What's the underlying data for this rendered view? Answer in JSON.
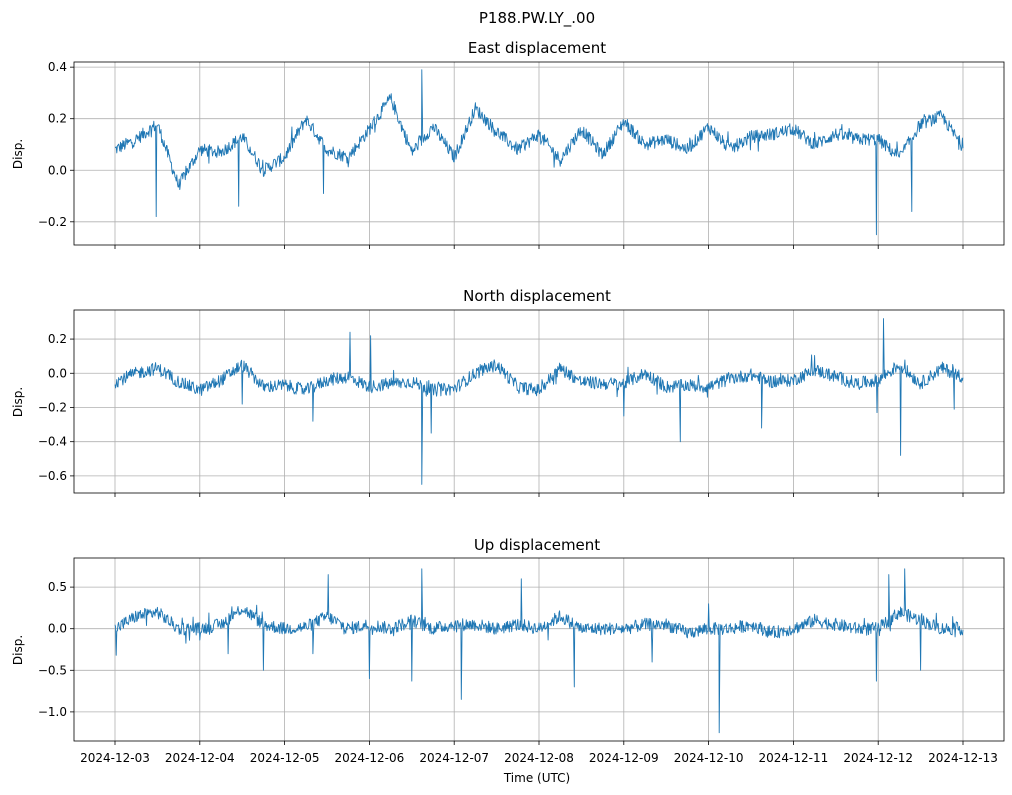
{
  "figure": {
    "suptitle": "P188.PW.LY_.00",
    "xlabel": "Time (UTC)",
    "x_tick_labels": [
      "2024-12-03",
      "2024-12-04",
      "2024-12-05",
      "2024-12-06",
      "2024-12-07",
      "2024-12-08",
      "2024-12-09",
      "2024-12-10",
      "2024-12-11",
      "2024-12-12",
      "2024-12-13"
    ],
    "line_color": "#1f77b4",
    "grid_color": "#b0b0b0"
  },
  "chart_data": [
    {
      "type": "line",
      "title": "East displacement",
      "ylabel": "Disp.",
      "grid": true,
      "ylim": [
        -0.29,
        0.42
      ],
      "yticks": [
        -0.2,
        0.0,
        0.2,
        0.4
      ],
      "ytick_labels": [
        "−0.2",
        "0.0",
        "0.2",
        "0.4"
      ],
      "x_range": [
        "2024-12-03",
        "2024-12-13"
      ],
      "series": [
        {
          "x": [
            "2024-12-03T00:00",
            "2024-12-03T06:00",
            "2024-12-03T12:00",
            "2024-12-03T18:00",
            "2024-12-04T00:00",
            "2024-12-04T06:00",
            "2024-12-04T12:00",
            "2024-12-04T18:00",
            "2024-12-05T00:00",
            "2024-12-05T06:00",
            "2024-12-05T12:00",
            "2024-12-05T18:00",
            "2024-12-06T00:00",
            "2024-12-06T06:00",
            "2024-12-06T12:00",
            "2024-12-06T18:00",
            "2024-12-07T00:00",
            "2024-12-07T06:00",
            "2024-12-07T12:00",
            "2024-12-07T18:00",
            "2024-12-08T00:00",
            "2024-12-08T06:00",
            "2024-12-08T12:00",
            "2024-12-08T18:00",
            "2024-12-09T00:00",
            "2024-12-09T06:00",
            "2024-12-09T12:00",
            "2024-12-09T18:00",
            "2024-12-10T00:00",
            "2024-12-10T06:00",
            "2024-12-10T12:00",
            "2024-12-10T18:00",
            "2024-12-11T00:00",
            "2024-12-11T06:00",
            "2024-12-11T12:00",
            "2024-12-11T18:00",
            "2024-12-12T00:00",
            "2024-12-12T06:00",
            "2024-12-12T12:00",
            "2024-12-12T18:00",
            "2024-12-13T00:00"
          ],
          "y": [
            0.08,
            0.12,
            0.18,
            -0.06,
            0.08,
            0.07,
            0.13,
            0.0,
            0.05,
            0.2,
            0.08,
            0.05,
            0.16,
            0.28,
            0.07,
            0.17,
            0.05,
            0.24,
            0.15,
            0.08,
            0.14,
            0.04,
            0.16,
            0.06,
            0.19,
            0.1,
            0.12,
            0.08,
            0.17,
            0.08,
            0.13,
            0.14,
            0.16,
            0.1,
            0.14,
            0.12,
            0.12,
            0.05,
            0.18,
            0.21,
            0.09
          ]
        }
      ],
      "spikes": [
        {
          "x": "2024-12-03T11:40",
          "y": -0.18
        },
        {
          "x": "2024-12-04T11:00",
          "y": -0.14
        },
        {
          "x": "2024-12-05T11:00",
          "y": -0.09
        },
        {
          "x": "2024-12-06T14:50",
          "y": 0.39
        },
        {
          "x": "2024-12-11T23:30",
          "y": -0.25
        },
        {
          "x": "2024-12-12T09:30",
          "y": -0.16
        }
      ]
    },
    {
      "type": "line",
      "title": "North displacement",
      "ylabel": "Disp.",
      "grid": true,
      "ylim": [
        -0.7,
        0.37
      ],
      "yticks": [
        -0.6,
        -0.4,
        -0.2,
        0.0,
        0.2
      ],
      "ytick_labels": [
        "−0.6",
        "−0.4",
        "−0.2",
        "0.0",
        "0.2"
      ],
      "x_range": [
        "2024-12-03",
        "2024-12-13"
      ],
      "series": [
        {
          "x": [
            "2024-12-03T00:00",
            "2024-12-03T06:00",
            "2024-12-03T12:00",
            "2024-12-03T18:00",
            "2024-12-04T00:00",
            "2024-12-04T06:00",
            "2024-12-04T12:00",
            "2024-12-04T18:00",
            "2024-12-05T00:00",
            "2024-12-05T06:00",
            "2024-12-05T12:00",
            "2024-12-05T18:00",
            "2024-12-06T00:00",
            "2024-12-06T06:00",
            "2024-12-06T12:00",
            "2024-12-06T18:00",
            "2024-12-07T00:00",
            "2024-12-07T06:00",
            "2024-12-07T12:00",
            "2024-12-07T18:00",
            "2024-12-08T00:00",
            "2024-12-08T06:00",
            "2024-12-08T12:00",
            "2024-12-08T18:00",
            "2024-12-09T00:00",
            "2024-12-09T06:00",
            "2024-12-09T12:00",
            "2024-12-09T18:00",
            "2024-12-10T00:00",
            "2024-12-10T06:00",
            "2024-12-10T12:00",
            "2024-12-10T18:00",
            "2024-12-11T00:00",
            "2024-12-11T06:00",
            "2024-12-11T12:00",
            "2024-12-11T18:00",
            "2024-12-12T00:00",
            "2024-12-12T06:00",
            "2024-12-12T12:00",
            "2024-12-12T18:00",
            "2024-12-13T00:00"
          ],
          "y": [
            -0.05,
            0.0,
            0.03,
            -0.05,
            -0.1,
            -0.04,
            0.05,
            -0.08,
            -0.07,
            -0.1,
            -0.04,
            -0.02,
            -0.08,
            -0.06,
            -0.05,
            -0.1,
            -0.09,
            0.0,
            0.05,
            -0.08,
            -0.1,
            0.03,
            -0.05,
            -0.06,
            -0.06,
            0.0,
            -0.08,
            -0.07,
            -0.08,
            -0.03,
            -0.01,
            -0.05,
            -0.04,
            0.02,
            -0.02,
            -0.06,
            -0.04,
            0.05,
            -0.06,
            0.03,
            -0.02
          ]
        }
      ],
      "spikes": [
        {
          "x": "2024-12-04T12:00",
          "y": -0.18
        },
        {
          "x": "2024-12-05T08:00",
          "y": -0.28
        },
        {
          "x": "2024-12-05T18:30",
          "y": 0.24
        },
        {
          "x": "2024-12-06T00:20",
          "y": 0.22
        },
        {
          "x": "2024-12-06T17:30",
          "y": -0.35
        },
        {
          "x": "2024-12-06T14:50",
          "y": -0.65
        },
        {
          "x": "2024-12-09T00:00",
          "y": -0.25
        },
        {
          "x": "2024-12-09T16:00",
          "y": -0.4
        },
        {
          "x": "2024-12-10T15:00",
          "y": -0.32
        },
        {
          "x": "2024-12-11T23:40",
          "y": -0.23
        },
        {
          "x": "2024-12-12T01:30",
          "y": 0.32
        },
        {
          "x": "2024-12-12T06:20",
          "y": -0.48
        },
        {
          "x": "2024-12-12T21:30",
          "y": -0.21
        }
      ]
    },
    {
      "type": "line",
      "title": "Up displacement",
      "ylabel": "Disp.",
      "grid": true,
      "ylim": [
        -1.35,
        0.85
      ],
      "yticks": [
        -1.0,
        -0.5,
        0.0,
        0.5
      ],
      "ytick_labels": [
        "−1.0",
        "−0.5",
        "0.0",
        "0.5"
      ],
      "x_range": [
        "2024-12-03",
        "2024-12-13"
      ],
      "series": [
        {
          "x": [
            "2024-12-03T00:00",
            "2024-12-03T06:00",
            "2024-12-03T12:00",
            "2024-12-03T18:00",
            "2024-12-04T00:00",
            "2024-12-04T06:00",
            "2024-12-04T12:00",
            "2024-12-04T18:00",
            "2024-12-05T00:00",
            "2024-12-05T06:00",
            "2024-12-05T12:00",
            "2024-12-05T18:00",
            "2024-12-06T00:00",
            "2024-12-06T06:00",
            "2024-12-06T12:00",
            "2024-12-06T18:00",
            "2024-12-07T00:00",
            "2024-12-07T06:00",
            "2024-12-07T12:00",
            "2024-12-07T18:00",
            "2024-12-08T00:00",
            "2024-12-08T06:00",
            "2024-12-08T12:00",
            "2024-12-08T18:00",
            "2024-12-09T00:00",
            "2024-12-09T06:00",
            "2024-12-09T12:00",
            "2024-12-09T18:00",
            "2024-12-10T00:00",
            "2024-12-10T06:00",
            "2024-12-10T12:00",
            "2024-12-10T18:00",
            "2024-12-11T00:00",
            "2024-12-11T06:00",
            "2024-12-11T12:00",
            "2024-12-11T18:00",
            "2024-12-12T00:00",
            "2024-12-12T06:00",
            "2024-12-12T12:00",
            "2024-12-12T18:00",
            "2024-12-13T00:00"
          ],
          "y": [
            0.0,
            0.15,
            0.2,
            0.0,
            0.0,
            0.05,
            0.25,
            0.05,
            0.0,
            0.02,
            0.15,
            0.0,
            0.05,
            0.0,
            0.1,
            0.0,
            0.05,
            0.05,
            0.0,
            0.05,
            0.0,
            0.15,
            0.0,
            0.0,
            0.0,
            0.05,
            0.05,
            -0.05,
            0.0,
            0.0,
            0.05,
            -0.05,
            0.0,
            0.1,
            0.05,
            0.0,
            0.0,
            0.2,
            0.1,
            0.0,
            0.0
          ]
        }
      ],
      "spikes": [
        {
          "x": "2024-12-03T00:20",
          "y": -0.32
        },
        {
          "x": "2024-12-04T08:00",
          "y": -0.3
        },
        {
          "x": "2024-12-04T18:00",
          "y": -0.5
        },
        {
          "x": "2024-12-05T08:00",
          "y": -0.3
        },
        {
          "x": "2024-12-05T12:20",
          "y": 0.65
        },
        {
          "x": "2024-12-06T00:00",
          "y": -0.6
        },
        {
          "x": "2024-12-06T12:00",
          "y": -0.63
        },
        {
          "x": "2024-12-06T14:50",
          "y": 0.72
        },
        {
          "x": "2024-12-07T02:00",
          "y": -0.85
        },
        {
          "x": "2024-12-07T19:00",
          "y": 0.6
        },
        {
          "x": "2024-12-08T10:00",
          "y": -0.7
        },
        {
          "x": "2024-12-09T08:00",
          "y": -0.4
        },
        {
          "x": "2024-12-10T00:00",
          "y": 0.3
        },
        {
          "x": "2024-12-10T03:00",
          "y": -1.25
        },
        {
          "x": "2024-12-11T23:30",
          "y": -0.63
        },
        {
          "x": "2024-12-12T03:00",
          "y": 0.65
        },
        {
          "x": "2024-12-12T07:30",
          "y": 0.72
        },
        {
          "x": "2024-12-12T12:00",
          "y": -0.5
        }
      ]
    }
  ]
}
